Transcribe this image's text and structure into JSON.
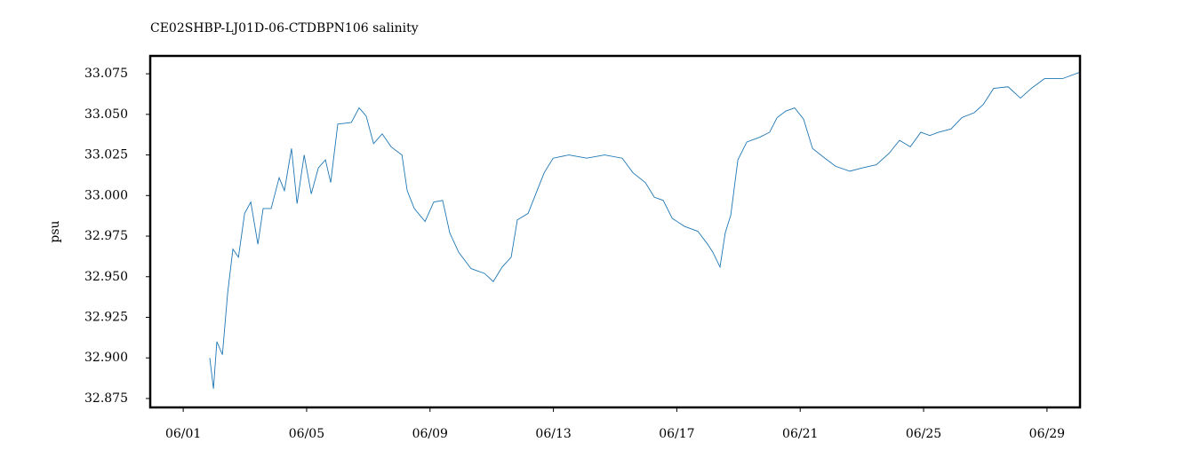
{
  "chart_data": {
    "type": "line",
    "title": "CE02SHBP-LJ01D-06-CTDBPN106 salinity",
    "y_label": "psu",
    "series": [
      {
        "name": "salinity",
        "color": "#1f77b4",
        "x": [
          1.86,
          1.98,
          2.09,
          2.27,
          2.44,
          2.61,
          2.79,
          2.99,
          3.19,
          3.42,
          3.59,
          3.85,
          4.11,
          4.28,
          4.51,
          4.69,
          4.92,
          5.15,
          5.38,
          5.61,
          5.78,
          6.01,
          6.45,
          6.7,
          6.93,
          7.17,
          7.45,
          7.74,
          8.09,
          8.26,
          8.49,
          8.84,
          9.12,
          9.41,
          9.64,
          9.93,
          10.33,
          10.77,
          11.05,
          11.34,
          11.63,
          11.83,
          12.18,
          12.47,
          12.7,
          12.99,
          13.5,
          14.08,
          14.66,
          15.23,
          15.58,
          15.98,
          16.27,
          16.56,
          16.85,
          17.25,
          17.68,
          18.0,
          18.17,
          18.4,
          18.57,
          18.75,
          18.98,
          19.27,
          19.7,
          20.01,
          20.25,
          20.53,
          20.82,
          21.11,
          21.4,
          21.8,
          22.15,
          22.61,
          23.01,
          23.47,
          23.88,
          24.22,
          24.57,
          24.91,
          25.2,
          25.49,
          25.89,
          26.24,
          26.64,
          26.93,
          27.27,
          27.74,
          28.14,
          28.49,
          28.92,
          29.5,
          30.07
        ],
        "values": [
          32.9,
          32.881,
          32.91,
          32.902,
          32.94,
          32.967,
          32.962,
          32.989,
          32.996,
          32.97,
          32.992,
          32.992,
          33.011,
          33.003,
          33.029,
          32.995,
          33.025,
          33.001,
          33.017,
          33.022,
          33.008,
          33.044,
          33.045,
          33.054,
          33.049,
          33.032,
          33.038,
          33.03,
          33.025,
          33.003,
          32.992,
          32.984,
          32.996,
          32.997,
          32.977,
          32.965,
          32.955,
          32.952,
          32.947,
          32.956,
          32.962,
          32.985,
          32.989,
          33.003,
          33.014,
          33.023,
          33.025,
          33.023,
          33.025,
          33.023,
          33.014,
          33.008,
          32.999,
          32.997,
          32.986,
          32.981,
          32.978,
          32.97,
          32.965,
          32.956,
          32.977,
          32.988,
          33.022,
          33.033,
          33.036,
          33.039,
          33.048,
          33.052,
          33.054,
          33.047,
          33.029,
          33.023,
          33.018,
          33.015,
          33.017,
          33.019,
          33.026,
          33.034,
          33.03,
          33.039,
          33.037,
          33.039,
          33.041,
          33.048,
          33.051,
          33.056,
          33.066,
          33.067,
          33.06,
          33.066,
          33.072,
          33.072,
          33.076
        ]
      }
    ],
    "xlim": [
      -0.07,
      30.07
    ],
    "xticks": [
      {
        "value": 1,
        "label": "06/01"
      },
      {
        "value": 5,
        "label": "06/05"
      },
      {
        "value": 9,
        "label": "06/09"
      },
      {
        "value": 13,
        "label": "06/13"
      },
      {
        "value": 17,
        "label": "06/17"
      },
      {
        "value": 21,
        "label": "06/21"
      },
      {
        "value": 25,
        "label": "06/25"
      },
      {
        "value": 29,
        "label": "06/29"
      }
    ],
    "ylim": [
      32.8695,
      33.086
    ],
    "yticks": [
      {
        "value": 32.875,
        "label": "32.875"
      },
      {
        "value": 32.9,
        "label": "32.900"
      },
      {
        "value": 32.925,
        "label": "32.925"
      },
      {
        "value": 32.95,
        "label": "32.950"
      },
      {
        "value": 32.975,
        "label": "32.975"
      },
      {
        "value": 33.0,
        "label": "33.000"
      },
      {
        "value": 33.025,
        "label": "33.025"
      },
      {
        "value": 33.05,
        "label": "33.050"
      },
      {
        "value": 33.075,
        "label": "33.075"
      }
    ],
    "grid": false
  }
}
